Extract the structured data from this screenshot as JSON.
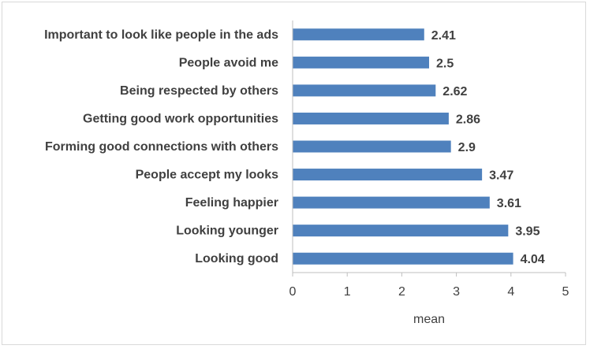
{
  "chart_data": {
    "type": "bar",
    "orientation": "horizontal",
    "categories": [
      "Important to look like people in the ads",
      "People avoid me",
      "Being respected by others",
      "Getting good work opportunities",
      "Forming good connections with others",
      "People accept my looks",
      "Feeling happier",
      "Looking younger",
      "Looking good"
    ],
    "values": [
      2.41,
      2.5,
      2.62,
      2.86,
      2.9,
      3.47,
      3.61,
      3.95,
      4.04
    ],
    "value_labels": [
      "2.41",
      "2.5",
      "2.62",
      "2.86",
      "2.9",
      "3.47",
      "3.61",
      "3.95",
      "4.04"
    ],
    "x_ticks": [
      "0",
      "1",
      "2",
      "3",
      "4",
      "5"
    ],
    "xlim": [
      0,
      5
    ],
    "xlabel": "mean",
    "ylabel": "",
    "title": "",
    "grid": false,
    "legend": "none",
    "bar_color": "#4f81bd",
    "text_color": "#404040",
    "axis_color": "#bfbfbf"
  }
}
